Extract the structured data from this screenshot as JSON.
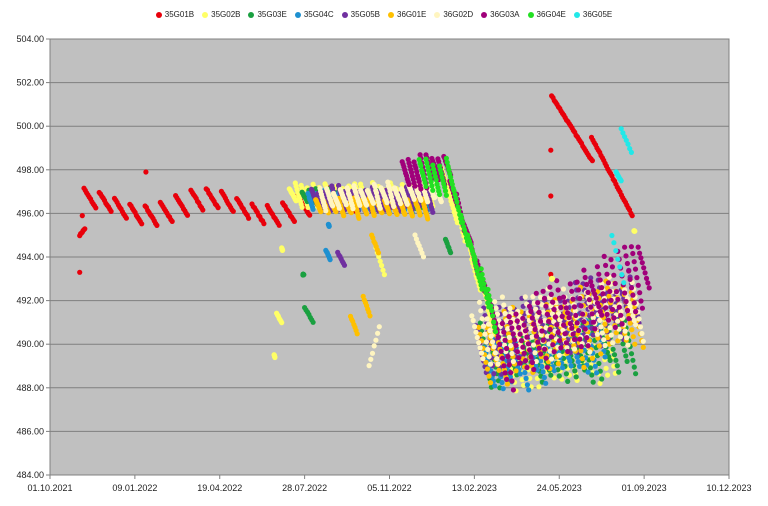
{
  "chart_data": {
    "type": "scatter",
    "title": "",
    "xlabel": "",
    "ylabel": "",
    "ylim": [
      484.0,
      504.0
    ],
    "y_ticks": [
      "484.00",
      "486.00",
      "488.00",
      "490.00",
      "492.00",
      "494.00",
      "496.00",
      "498.00",
      "500.00",
      "502.00",
      "504.00"
    ],
    "x_ticks": [
      "01.10.2021",
      "09.01.2022",
      "19.04.2022",
      "28.07.2022",
      "05.11.2022",
      "13.02.2023",
      "24.05.2023",
      "01.09.2023",
      "10.12.2023"
    ],
    "xlim_dates": [
      "2021-10-01",
      "2023-12-10"
    ],
    "plot_background": "#c0c0c0",
    "grid": true,
    "legend_position": "top",
    "series": [
      {
        "name": "35G01B",
        "color": "#e8000b"
      },
      {
        "name": "35G02B",
        "color": "#ffff66"
      },
      {
        "name": "35G03E",
        "color": "#1aa040"
      },
      {
        "name": "35G04C",
        "color": "#1e90d0"
      },
      {
        "name": "35G05B",
        "color": "#7030a0"
      },
      {
        "name": "36G01E",
        "color": "#ffc000"
      },
      {
        "name": "36G02D",
        "color": "#fff5c0"
      },
      {
        "name": "36G03A",
        "color": "#a0007a"
      },
      {
        "name": "36G04E",
        "color": "#22e022"
      },
      {
        "name": "36G05E",
        "color": "#22e8e8"
      }
    ]
  }
}
